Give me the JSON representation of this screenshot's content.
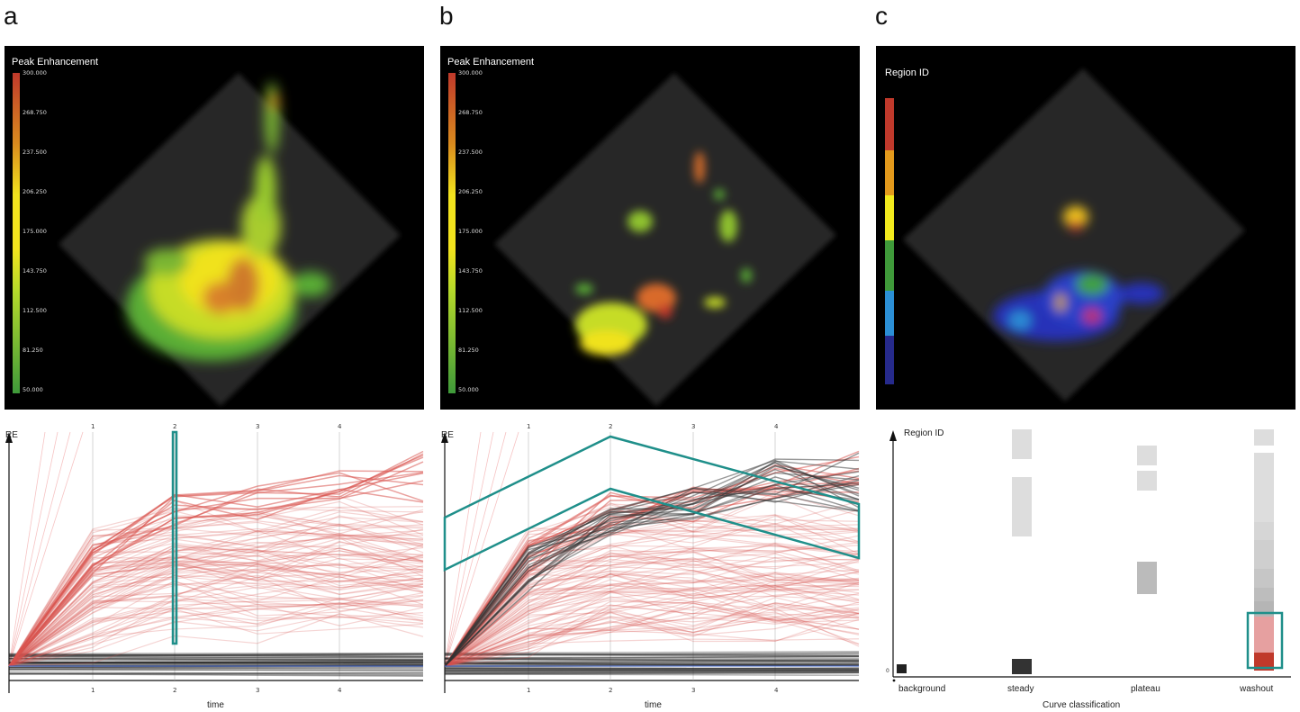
{
  "panels": {
    "a": {
      "letter": "a",
      "colorbar_title": "Peak Enhancement",
      "colorbar_ticks": [
        "300.000",
        "268.750",
        "237.500",
        "206.250",
        "175.000",
        "143.750",
        "112.500",
        "81.250",
        "50.000"
      ],
      "ylabel": "RE",
      "xlabel": "time",
      "top_ticks": [
        "1",
        "2",
        "3",
        "4"
      ],
      "bottom_ticks": [
        "1",
        "2",
        "3",
        "4"
      ]
    },
    "b": {
      "letter": "b",
      "colorbar_title": "Peak Enhancement",
      "colorbar_ticks": [
        "300.000",
        "268.750",
        "237.500",
        "206.250",
        "175.000",
        "143.750",
        "112.500",
        "81.250",
        "50.000"
      ],
      "ylabel": "RE",
      "xlabel": "time",
      "top_ticks": [
        "1",
        "2",
        "3",
        "4"
      ],
      "bottom_ticks": [
        "1",
        "2",
        "3",
        "4"
      ]
    },
    "c": {
      "letter": "c",
      "colorbar_title": "Region ID",
      "region_colors": [
        "#c0392b",
        "#e39a1c",
        "#f2ea1d",
        "#3f9a3a",
        "#2b8fd6",
        "#262a8c"
      ],
      "ylabel": "Region ID",
      "xlabel": "Curve classification",
      "origin_label": "0",
      "categories": [
        "background",
        "steady",
        "plateau",
        "washout"
      ]
    }
  },
  "colors": {
    "highlight": "#1f8f8a",
    "selected_curves": "#d9534f",
    "unselected_curves": "#333333",
    "peak_scale": [
      "#c0392b",
      "#d98a1e",
      "#f2e31d",
      "#b5d92a",
      "#3f9a3a"
    ]
  }
}
